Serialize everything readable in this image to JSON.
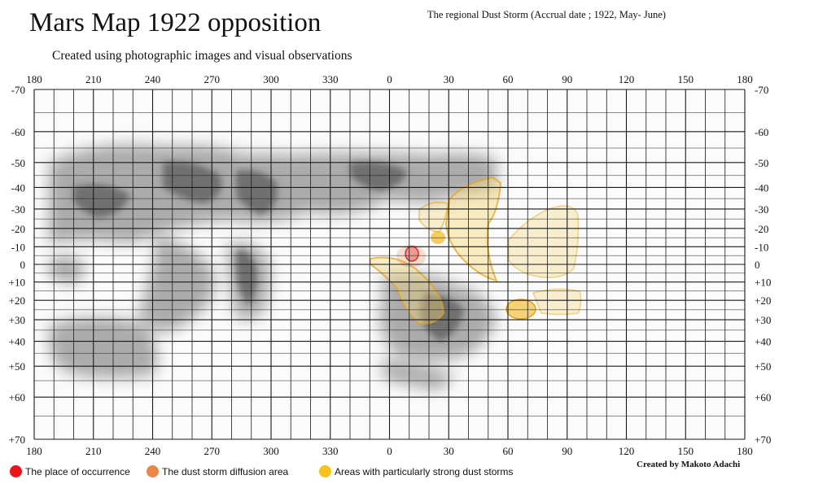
{
  "title": "Mars Map 1922 opposition",
  "subtitle": "Created using photographic images and visual observations",
  "storm_caption": "The regional Dust Storm (Accrual date ; 1922, May- June)",
  "credit": "Created by Makoto Adachi",
  "axes": {
    "longitude_labels": [
      "180",
      "210",
      "240",
      "270",
      "300",
      "330",
      "0",
      "30",
      "60",
      "90",
      "120",
      "150",
      "180"
    ],
    "latitude_labels": [
      "-70",
      "-60",
      "-50",
      "-40",
      "-30",
      "-20",
      "-10",
      "0",
      "+10",
      "+20",
      "+30",
      "+40",
      "+50",
      "+60",
      "+70"
    ],
    "latitude_values": [
      -70,
      -60,
      -50,
      -40,
      -30,
      -20,
      -10,
      0,
      10,
      20,
      30,
      40,
      50,
      60,
      70
    ]
  },
  "legend": [
    {
      "label": "The place of occurrence",
      "color": "#e8141a"
    },
    {
      "label": "The dust storm diffusion area",
      "color": "#e8894a"
    },
    {
      "label": "Areas with particularly strong dust storms",
      "color": "#f7c21a"
    }
  ],
  "colors": {
    "grid": "#1a1a1a",
    "albedo_dark": "#555555",
    "dust_outline": "#e3a31a",
    "dust_fill": "#f3d677"
  }
}
